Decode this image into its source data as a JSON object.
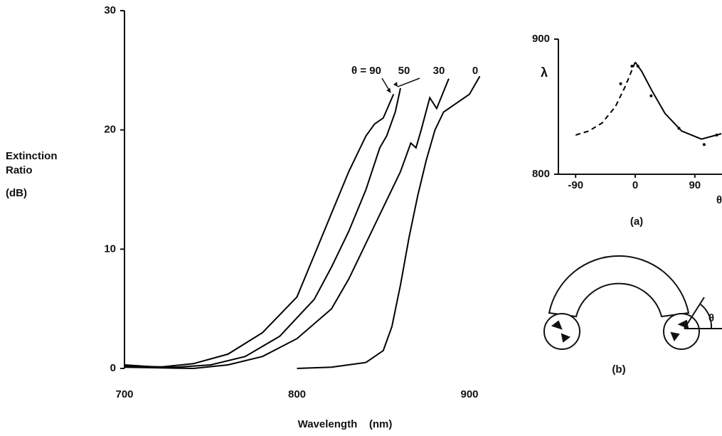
{
  "chart_data": [
    {
      "type": "line",
      "x_label": "Wavelength    (nm)",
      "y_label": [
        "Extinction",
        "Ratio",
        "(dB)"
      ],
      "xlim": [
        700,
        900
      ],
      "ylim": [
        0,
        30
      ],
      "xticks": [
        700,
        800,
        900
      ],
      "yticks": [
        0,
        10,
        20,
        30
      ],
      "series": [
        {
          "name": "θ = 90",
          "color": "#000000",
          "x": [
            700,
            720,
            740,
            760,
            780,
            800,
            810,
            820,
            830,
            840,
            845,
            850,
            856
          ],
          "values": [
            0.3,
            0.1,
            0.4,
            1.2,
            3,
            6,
            9.5,
            13,
            16.5,
            19.5,
            20.5,
            21,
            23
          ]
        },
        {
          "name": "50",
          "color": "#000000",
          "x": [
            700,
            730,
            750,
            770,
            790,
            810,
            820,
            830,
            840,
            848,
            852,
            857,
            860
          ],
          "values": [
            0.2,
            0.1,
            0.3,
            1,
            2.7,
            5.8,
            8.5,
            11.5,
            15,
            18.5,
            19.5,
            21.5,
            23.5
          ]
        },
        {
          "name": "30",
          "color": "#000000",
          "x": [
            700,
            740,
            760,
            780,
            800,
            820,
            830,
            840,
            850,
            860,
            866,
            869,
            872,
            877,
            881,
            888
          ],
          "values": [
            0.1,
            0,
            0.3,
            1,
            2.5,
            5,
            7.5,
            10.5,
            13.5,
            16.5,
            18.9,
            18.5,
            20,
            22.7,
            21.8,
            24.3
          ]
        },
        {
          "name": "0",
          "color": "#000000",
          "x": [
            800,
            820,
            840,
            850,
            855,
            860,
            865,
            870,
            875,
            880,
            885,
            895,
            900,
            906
          ],
          "values": [
            0,
            0.1,
            0.5,
            1.5,
            3.5,
            7,
            11,
            14.5,
            17.5,
            20,
            21.5,
            22.5,
            23,
            24.5
          ]
        }
      ]
    },
    {
      "type": "line",
      "caption": "(a)",
      "x_label": "θ",
      "y_label": "λ",
      "xlim": [
        -116,
        131
      ],
      "ylim": [
        800,
        900
      ],
      "xticks": [
        -90,
        0,
        90
      ],
      "yticks": [
        800,
        900
      ],
      "series": [
        {
          "color": "#000000",
          "dash": true,
          "x": [
            -90,
            -70,
            -50,
            -30,
            -15,
            0
          ],
          "values": [
            829,
            832,
            838,
            850,
            865,
            883
          ]
        },
        {
          "color": "#000000",
          "dash": false,
          "x": [
            0,
            10,
            25,
            45,
            70,
            100,
            130
          ],
          "values": [
            883,
            876,
            862,
            845,
            832,
            826,
            830
          ]
        }
      ],
      "points": {
        "color": "#000000",
        "x": [
          -22,
          -5,
          4,
          24,
          66,
          104,
          123
        ],
        "values": [
          867,
          880,
          880,
          858,
          834,
          822,
          829
        ]
      }
    }
  ],
  "diagram": {
    "caption": "(b)",
    "angle_label": "θ"
  }
}
